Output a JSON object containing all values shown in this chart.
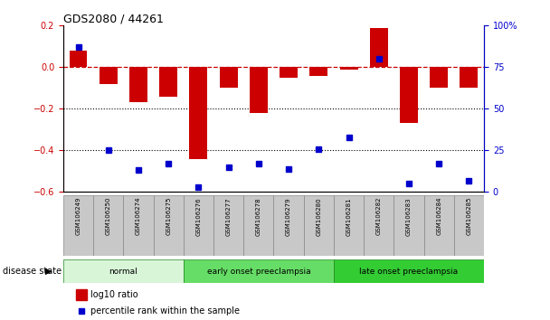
{
  "title": "GDS2080 / 44261",
  "samples": [
    "GSM106249",
    "GSM106250",
    "GSM106274",
    "GSM106275",
    "GSM106276",
    "GSM106277",
    "GSM106278",
    "GSM106279",
    "GSM106280",
    "GSM106281",
    "GSM106282",
    "GSM106283",
    "GSM106284",
    "GSM106285"
  ],
  "log10_ratio": [
    0.08,
    -0.08,
    -0.17,
    -0.14,
    -0.44,
    -0.1,
    -0.22,
    -0.05,
    -0.04,
    -0.01,
    0.19,
    -0.27,
    -0.1,
    -0.1
  ],
  "percentile_rank": [
    87,
    25,
    13,
    17,
    3,
    15,
    17,
    14,
    26,
    33,
    80,
    5,
    17,
    7
  ],
  "groups": [
    {
      "label": "normal",
      "start": 0,
      "end": 4,
      "color": "#d8f5d8"
    },
    {
      "label": "early onset preeclampsia",
      "start": 4,
      "end": 9,
      "color": "#66dd66"
    },
    {
      "label": "late onset preeclampsia",
      "start": 9,
      "end": 14,
      "color": "#33cc33"
    }
  ],
  "bar_color": "#cc0000",
  "dot_color": "#0000cc",
  "dashed_line_color": "#cc0000",
  "left_ylim": [
    -0.6,
    0.2
  ],
  "right_ylim": [
    0,
    100
  ],
  "left_yticks": [
    -0.6,
    -0.4,
    -0.2,
    0.0,
    0.2
  ],
  "right_yticks": [
    0,
    25,
    50,
    75,
    100
  ],
  "right_yticklabels": [
    "0",
    "25",
    "50",
    "75",
    "100%"
  ],
  "background_color": "#ffffff",
  "legend_items": [
    "log10 ratio",
    "percentile rank within the sample"
  ],
  "disease_label": "disease state"
}
